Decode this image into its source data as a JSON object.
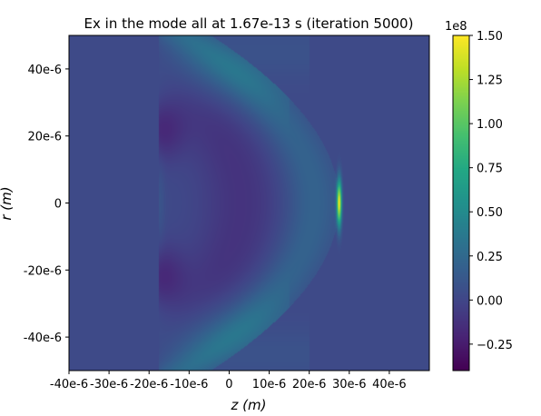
{
  "chart_data": {
    "type": "heatmap",
    "title": "Ex in the mode all at 1.67e-13 s   (iteration 5000)",
    "xlabel": "z (m)",
    "ylabel": "r (m)",
    "xlim": [
      -4e-05,
      5e-05
    ],
    "ylim": [
      -5e-05,
      5e-05
    ],
    "x_ticks": [
      -4e-05,
      -3e-05,
      -2e-05,
      -1e-05,
      0,
      1e-05,
      2e-05,
      3e-05,
      4e-05
    ],
    "x_tick_labels": [
      "-40e-6",
      "-30e-6",
      "-20e-6",
      "-10e-6",
      "0",
      "10e-6",
      "20e-6",
      "30e-6",
      "40e-6"
    ],
    "y_ticks": [
      4e-05,
      2e-05,
      0,
      -2e-05,
      -4e-05
    ],
    "y_tick_labels": [
      "40e-6",
      "20e-6",
      "0",
      "-20e-6",
      "-40e-6"
    ],
    "colormap": "viridis",
    "colorbar": {
      "min": -0.4,
      "max": 1.5,
      "ticks": [
        1.5,
        1.25,
        1.0,
        0.75,
        0.5,
        0.25,
        0.0,
        -0.25
      ],
      "tick_labels": [
        "1.50",
        "1.25",
        "1.00",
        "0.75",
        "0.50",
        "0.25",
        "0.00",
        "−0.25"
      ],
      "multiplier_label": "1e8"
    },
    "field_features": {
      "background_value": 0.02,
      "field_start_z": -1.75e-05,
      "spike": {
        "z": 2.75e-05,
        "r_extent": [
          -1.5e-05,
          1.5e-05
        ],
        "peak_value": 1.4
      },
      "wavefront_arc_vertex_z": 2.7e-05,
      "wavefront_arc_edge_z": -5e-06,
      "bright_band_value": 0.18,
      "dark_lobes": [
        {
          "z": -1.7e-05,
          "r": 2.2e-05,
          "value": -0.2
        },
        {
          "z": -1.7e-05,
          "r": -2.2e-05,
          "value": -0.2
        }
      ]
    }
  }
}
